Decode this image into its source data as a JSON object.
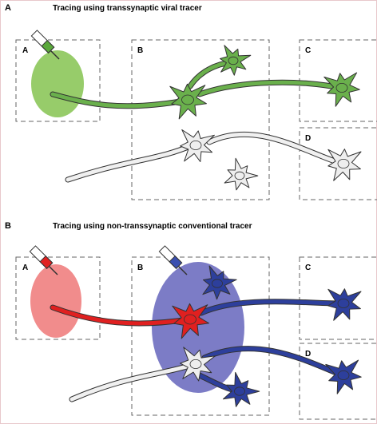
{
  "panels": [
    {
      "label": "A",
      "title": "Tracing using transsynaptic viral tracer",
      "boxes": [
        "A",
        "B",
        "C",
        "D"
      ]
    },
    {
      "label": "B",
      "title": "Tracing using non-transsynaptic conventional tracer",
      "boxes": [
        "A",
        "B",
        "C",
        "D"
      ]
    }
  ]
}
